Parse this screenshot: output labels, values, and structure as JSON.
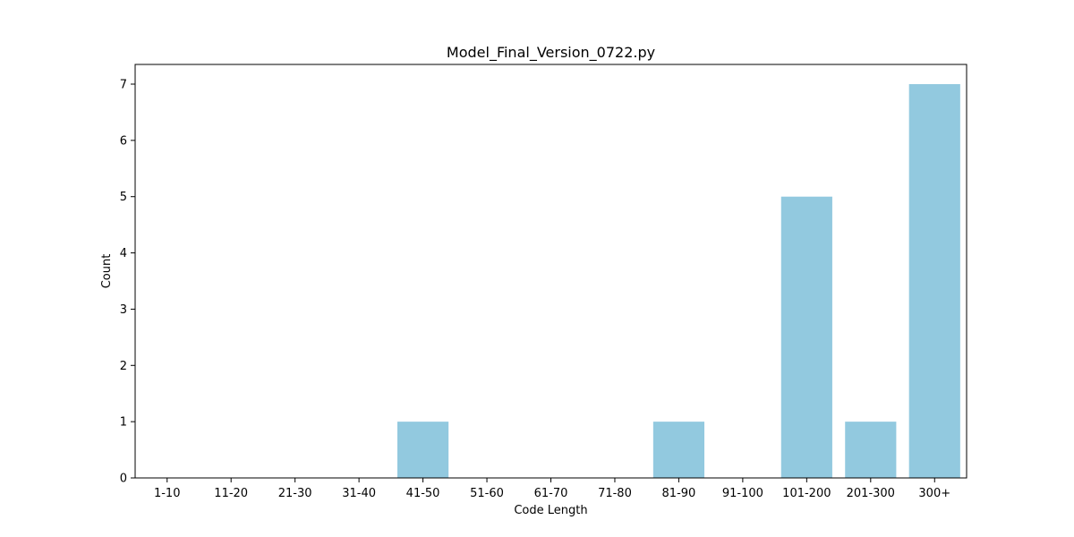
{
  "chart_data": {
    "type": "bar",
    "title": "Model_Final_Version_0722.py",
    "xlabel": "Code Length",
    "ylabel": "Count",
    "categories": [
      "1-10",
      "11-20",
      "21-30",
      "31-40",
      "41-50",
      "51-60",
      "61-70",
      "71-80",
      "81-90",
      "91-100",
      "101-200",
      "201-300",
      "300+"
    ],
    "values": [
      0,
      0,
      0,
      0,
      1,
      0,
      0,
      0,
      1,
      0,
      5,
      1,
      7
    ],
    "yticks": [
      0,
      1,
      2,
      3,
      4,
      5,
      6,
      7
    ],
    "ylim": [
      0,
      7.35
    ],
    "bar_color": "#92c9df",
    "grid": false,
    "legend": "none"
  }
}
